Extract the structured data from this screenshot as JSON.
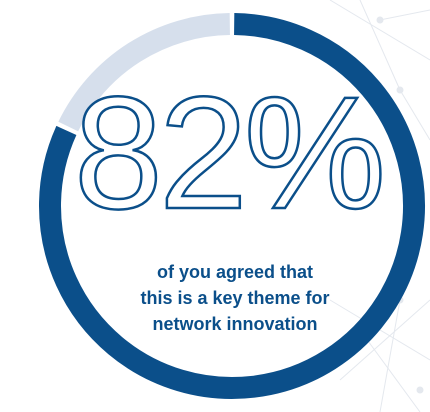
{
  "chart_data": {
    "type": "donut",
    "categories": [
      null,
      null
    ],
    "values": [
      82,
      18
    ],
    "value_labels": [
      "82%",
      null
    ],
    "colors": [
      "#0b4f8a",
      "#d6dfec"
    ],
    "caption": [
      "of you agreed that",
      "this is a key theme for",
      "network innovation"
    ]
  }
}
